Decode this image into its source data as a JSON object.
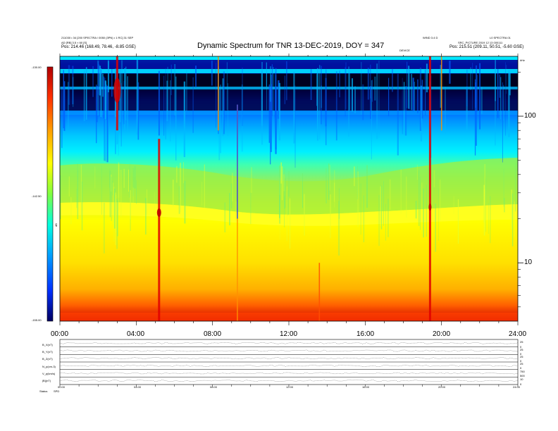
{
  "chart_data": {
    "type": "heatmap",
    "title": "Dynamic Spectrum for TNR 13-DEC-2019, DOY = 347",
    "header_left": {
      "line1": "211030 • 34 [200 SPECTRA / 0050 (3PN) • 1 RC] 31 SEP",
      "line2": "AD [RB] 3.5 × 60 [S]",
      "line3": "Pos:    214.46 (168.49, 78.46, -8.85 GSE)"
    },
    "header_center_right": "WIND 3.4 D",
    "header_right": {
      "line1": "L0 SPECTRA 01",
      "line2": "SRC_PICTURE 2019 12 13 000111",
      "line3": "Pos:    215.51 (209.11, 50.51, -5.60 GSE)"
    },
    "header_mid_small": "DEVICE",
    "right_corner_label": "kHz",
    "colorbar": {
      "min": -155.0,
      "max": -130.0,
      "tick_labels": [
        "-130.00",
        "-142.50",
        "-155.00"
      ],
      "unit_label": "dB",
      "colors": [
        "#a00000",
        "#ff3c00",
        "#ffb400",
        "#ffff00",
        "#c8f040",
        "#50ff90",
        "#00f0ff",
        "#00b0ff",
        "#0050ff",
        "#0000c0",
        "#000040"
      ]
    },
    "x_axis": {
      "min": 0,
      "max": 24,
      "tick_labels": [
        "00:00",
        "04:00",
        "08:00",
        "12:00",
        "16:00",
        "20:00",
        "24:00"
      ]
    },
    "y_axis": {
      "scale": "log",
      "min": 4,
      "max": 256,
      "unit": "kHz",
      "tick_labels": [
        "100",
        "10"
      ],
      "major_ticks": [
        10,
        100
      ]
    },
    "bursts": [
      {
        "t": 3.0,
        "f_low": 80,
        "f_high": 256,
        "strength": "high"
      },
      {
        "t": 5.2,
        "f_low": 4,
        "f_high": 70,
        "strength": "high"
      },
      {
        "t": 8.3,
        "f_low": 80,
        "f_high": 256,
        "strength": "medium"
      },
      {
        "t": 9.3,
        "f_low": 4,
        "f_high": 120,
        "strength": "medium"
      },
      {
        "t": 13.6,
        "f_low": 4,
        "f_high": 10,
        "strength": "low"
      },
      {
        "t": 19.4,
        "f_low": 4,
        "f_high": 256,
        "strength": "high"
      },
      {
        "t": 20.0,
        "f_low": 80,
        "f_high": 256,
        "strength": "medium"
      }
    ],
    "bottom_panels": {
      "labels": [
        "B_X(nT)",
        "B_Y(nT)",
        "B_Z(nT)",
        "N_p(cm-3)",
        "V_p(km/s)",
        "|B|(nT)"
      ],
      "x_tick_labels": [
        "00:00",
        "04:00",
        "08:00",
        "12:00",
        "16:00",
        "20:00",
        "24:00"
      ],
      "right_labels": [
        "25",
        "0",
        "25",
        "0",
        "25",
        "0",
        "25",
        "0",
        "750",
        "500",
        "10",
        "0"
      ],
      "footer_left": "Status",
      "footer_small": "SPD"
    }
  }
}
